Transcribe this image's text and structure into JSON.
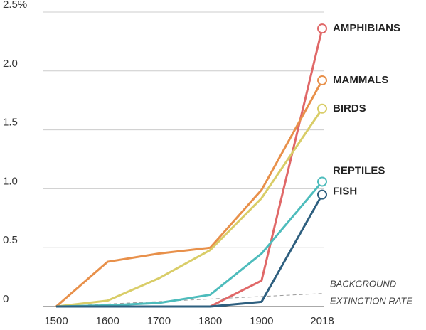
{
  "chart_data": {
    "type": "line",
    "x": [
      1500,
      1600,
      1700,
      1800,
      1900,
      2018
    ],
    "xlim": [
      1500,
      2018
    ],
    "xticks": [
      1500,
      1600,
      1700,
      1800,
      1900,
      2018
    ],
    "ylim": [
      0,
      2.5
    ],
    "yticks": [
      0,
      0.5,
      {
        "value": 1,
        "label": "1.0"
      },
      {
        "value": 1.5,
        "label": "1.5"
      },
      {
        "value": 2,
        "label": "2.0"
      },
      {
        "value": 2.5,
        "label": "2.5%"
      }
    ],
    "grid": true,
    "series": [
      {
        "name": "AMPHIBIANS",
        "color": "#e06868",
        "values": [
          0,
          0,
          0,
          0,
          0.22,
          2.36
        ]
      },
      {
        "name": "MAMMALS",
        "color": "#e8904a",
        "values": [
          0,
          0.38,
          0.45,
          0.5,
          0.99,
          1.92
        ]
      },
      {
        "name": "BIRDS",
        "color": "#d9cd68",
        "values": [
          0,
          0.05,
          0.24,
          0.48,
          0.92,
          1.68
        ]
      },
      {
        "name": "REPTILES",
        "color": "#4dbcbc",
        "values": [
          0,
          0.01,
          0.03,
          0.1,
          0.45,
          1.06
        ]
      },
      {
        "name": "FISH",
        "color": "#2e5f7f",
        "values": [
          0,
          0,
          0,
          0,
          0.04,
          0.95
        ]
      }
    ],
    "background_rate": {
      "lines": [
        "BACKGROUND",
        "EXTINCTION RATE"
      ],
      "x": [
        1500,
        2018
      ],
      "values": [
        0,
        0.11
      ]
    }
  }
}
